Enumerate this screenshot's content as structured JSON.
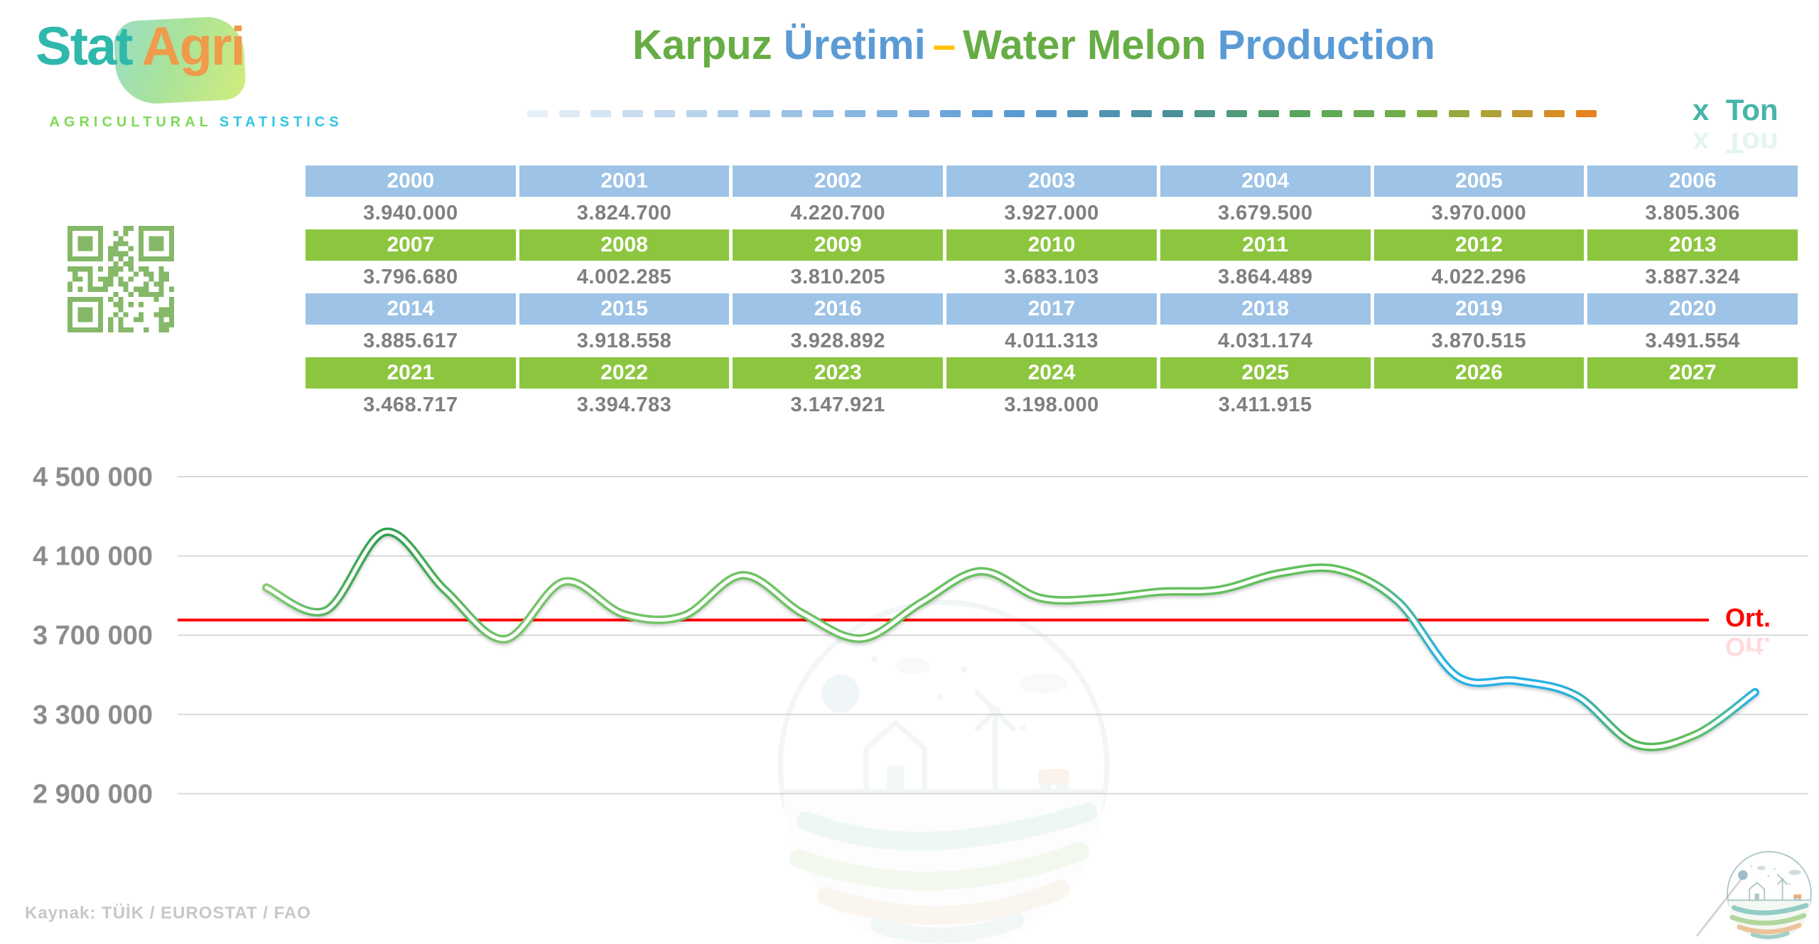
{
  "logo": {
    "stat": "Stat",
    "agri": "Agri",
    "subtitle_agricultural": "AGRICULTURAL",
    "subtitle_statistics": "STATISTICS"
  },
  "title": {
    "karpuz": "Karpuz",
    "uretimi": "Üretimi",
    "dash": "–",
    "water_melon": "Water Melon",
    "production": "Production"
  },
  "unit_label": "x  Ton",
  "table": {
    "row_groups": [
      {
        "header_color": "blue",
        "years": [
          "2000",
          "2001",
          "2002",
          "2003",
          "2004",
          "2005",
          "2006"
        ],
        "values": [
          "3.940.000",
          "3.824.700",
          "4.220.700",
          "3.927.000",
          "3.679.500",
          "3.970.000",
          "3.805.306"
        ]
      },
      {
        "header_color": "green",
        "years": [
          "2007",
          "2008",
          "2009",
          "2010",
          "2011",
          "2012",
          "2013"
        ],
        "values": [
          "3.796.680",
          "4.002.285",
          "3.810.205",
          "3.683.103",
          "3.864.489",
          "4.022.296",
          "3.887.324"
        ]
      },
      {
        "header_color": "blue",
        "years": [
          "2014",
          "2015",
          "2016",
          "2017",
          "2018",
          "2019",
          "2020"
        ],
        "values": [
          "3.885.617",
          "3.918.558",
          "3.928.892",
          "4.011.313",
          "4.031.174",
          "3.870.515",
          "3.491.554"
        ]
      },
      {
        "header_color": "green",
        "years": [
          "2021",
          "2022",
          "2023",
          "2024",
          "2025",
          "2026",
          "2027"
        ],
        "values": [
          "3.468.717",
          "3.394.783",
          "3.147.921",
          "3.198.000",
          "3.411.915",
          "",
          ""
        ]
      }
    ]
  },
  "chart_data": {
    "type": "line",
    "title": "Karpuz Üretimi – Water Melon Production",
    "unit": "x Ton",
    "x": [
      2000,
      2001,
      2002,
      2003,
      2004,
      2005,
      2006,
      2007,
      2008,
      2009,
      2010,
      2011,
      2012,
      2013,
      2014,
      2015,
      2016,
      2017,
      2018,
      2019,
      2020,
      2021,
      2022,
      2023,
      2024,
      2025
    ],
    "values": [
      3940000,
      3824700,
      4220700,
      3927000,
      3679500,
      3970000,
      3805306,
      3796680,
      4002285,
      3810205,
      3683103,
      3864489,
      4022296,
      3887324,
      3885617,
      3918558,
      3928892,
      4011313,
      4031174,
      3870515,
      3491554,
      3468717,
      3394783,
      3147921,
      3198000,
      3411915
    ],
    "average": 3776637,
    "average_label": "Ort.",
    "yticks": [
      4500000,
      4100000,
      3700000,
      3300000,
      2900000
    ],
    "ytick_labels": [
      "4 500 000",
      "4 100 000",
      "3 700 000",
      "3 300 000",
      "2 900 000"
    ],
    "ylim": [
      2780000,
      4650000
    ],
    "grid": true,
    "legend": "none",
    "line_style": "smooth double line, green with cyan segments (2020-2022 and 2025)"
  },
  "average_label": "Ort.",
  "source": "Kaynak: TÜİK / EUROSTAT / FAO",
  "colors": {
    "header_blue": "#9dc3e6",
    "header_green": "#8cc63f",
    "title_green": "#67ad45",
    "title_blue": "#5b9bd5",
    "title_dash_yellow": "#ffc000",
    "average_line_red": "#ff0000",
    "line_green": "#6fc263",
    "line_green_dark": "#2f9e4f",
    "line_cyan": "#29b1e6",
    "unit_teal": "#45b5a9",
    "value_text_gray": "#7f7f7f",
    "axis_gray": "#8c8c8c",
    "qr_green": "#85b868"
  }
}
